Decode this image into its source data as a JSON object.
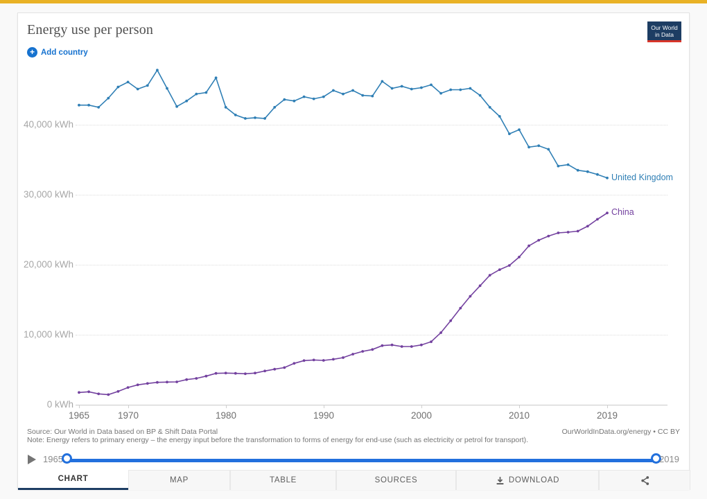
{
  "top_bar": {
    "color": "#e9b226"
  },
  "header": {
    "title": "Energy use per person",
    "add_country_label": "Add country",
    "accent_blue": "#1672cf"
  },
  "logo": {
    "line1": "Our World",
    "line2": "in Data",
    "bg": "#1d3d63",
    "underline": "#d8352a"
  },
  "chart_data": {
    "type": "line",
    "title": "Energy use per person",
    "unit": "kWh",
    "x_start": 1965,
    "x_end": 2019,
    "x": [
      1965,
      1966,
      1967,
      1968,
      1969,
      1970,
      1971,
      1972,
      1973,
      1974,
      1975,
      1976,
      1977,
      1978,
      1979,
      1980,
      1981,
      1982,
      1983,
      1984,
      1985,
      1986,
      1987,
      1988,
      1989,
      1990,
      1991,
      1992,
      1993,
      1994,
      1995,
      1996,
      1997,
      1998,
      1999,
      2000,
      2001,
      2002,
      2003,
      2004,
      2005,
      2006,
      2007,
      2008,
      2009,
      2010,
      2011,
      2012,
      2013,
      2014,
      2015,
      2016,
      2017,
      2018,
      2019
    ],
    "series": [
      {
        "name": "United Kingdom",
        "color": "#2f7fb5",
        "values": [
          42800,
          42800,
          42500,
          43800,
          45400,
          46100,
          45100,
          45600,
          47800,
          45200,
          42600,
          43400,
          44400,
          44600,
          46700,
          42500,
          41400,
          40900,
          41000,
          40900,
          42500,
          43600,
          43400,
          44000,
          43700,
          44000,
          44900,
          44400,
          44900,
          44200,
          44100,
          46200,
          45200,
          45500,
          45100,
          45300,
          45700,
          44500,
          45000,
          45000,
          45200,
          44200,
          42500,
          41200,
          38700,
          39300,
          36800,
          37000,
          36500,
          34100,
          34300,
          33500,
          33300,
          32900,
          32400
        ]
      },
      {
        "name": "China",
        "color": "#73419f",
        "values": [
          1750,
          1850,
          1550,
          1450,
          1900,
          2470,
          2840,
          3040,
          3200,
          3240,
          3270,
          3590,
          3760,
          4090,
          4490,
          4520,
          4490,
          4430,
          4520,
          4820,
          5080,
          5310,
          5910,
          6310,
          6400,
          6340,
          6500,
          6730,
          7230,
          7620,
          7890,
          8450,
          8540,
          8320,
          8320,
          8540,
          9000,
          10300,
          12000,
          13800,
          15500,
          17000,
          18500,
          19300,
          19900,
          21100,
          22700,
          23500,
          24100,
          24550,
          24650,
          24800,
          25500,
          26500,
          27400
        ]
      }
    ],
    "ylim": [
      0,
      48500
    ],
    "yticks": [
      0,
      10000,
      20000,
      30000,
      40000
    ],
    "ytick_labels": [
      "0 kWh",
      "10,000 kWh",
      "20,000 kWh",
      "30,000 kWh",
      "40,000 kWh"
    ],
    "xticks": [
      1965,
      1970,
      1980,
      1990,
      2000,
      2010,
      2019
    ],
    "xtick_labels": [
      "1965",
      "1970",
      "1980",
      "1990",
      "2000",
      "2010",
      "2019"
    ],
    "grid": "horizontal dotted",
    "legend": "end-of-line labels"
  },
  "footer": {
    "source": "Source: Our World in Data based on BP & Shift Data Portal",
    "note": "Note: Energy refers to primary energy – the energy input before the transformation to forms of energy for end-use (such as electricity or petrol for transport).",
    "attribution": "OurWorldInData.org/energy • CC BY"
  },
  "timeline": {
    "start_year": "1965",
    "end_year": "2019",
    "slider_color": "#2270dd"
  },
  "tabs": [
    {
      "label": "CHART",
      "active": true
    },
    {
      "label": "MAP",
      "active": false
    },
    {
      "label": "TABLE",
      "active": false
    },
    {
      "label": "SOURCES",
      "active": false
    },
    {
      "label": "DOWNLOAD",
      "active": false,
      "icon": "download-icon"
    },
    {
      "label": "",
      "active": false,
      "icon": "share-icon"
    }
  ]
}
